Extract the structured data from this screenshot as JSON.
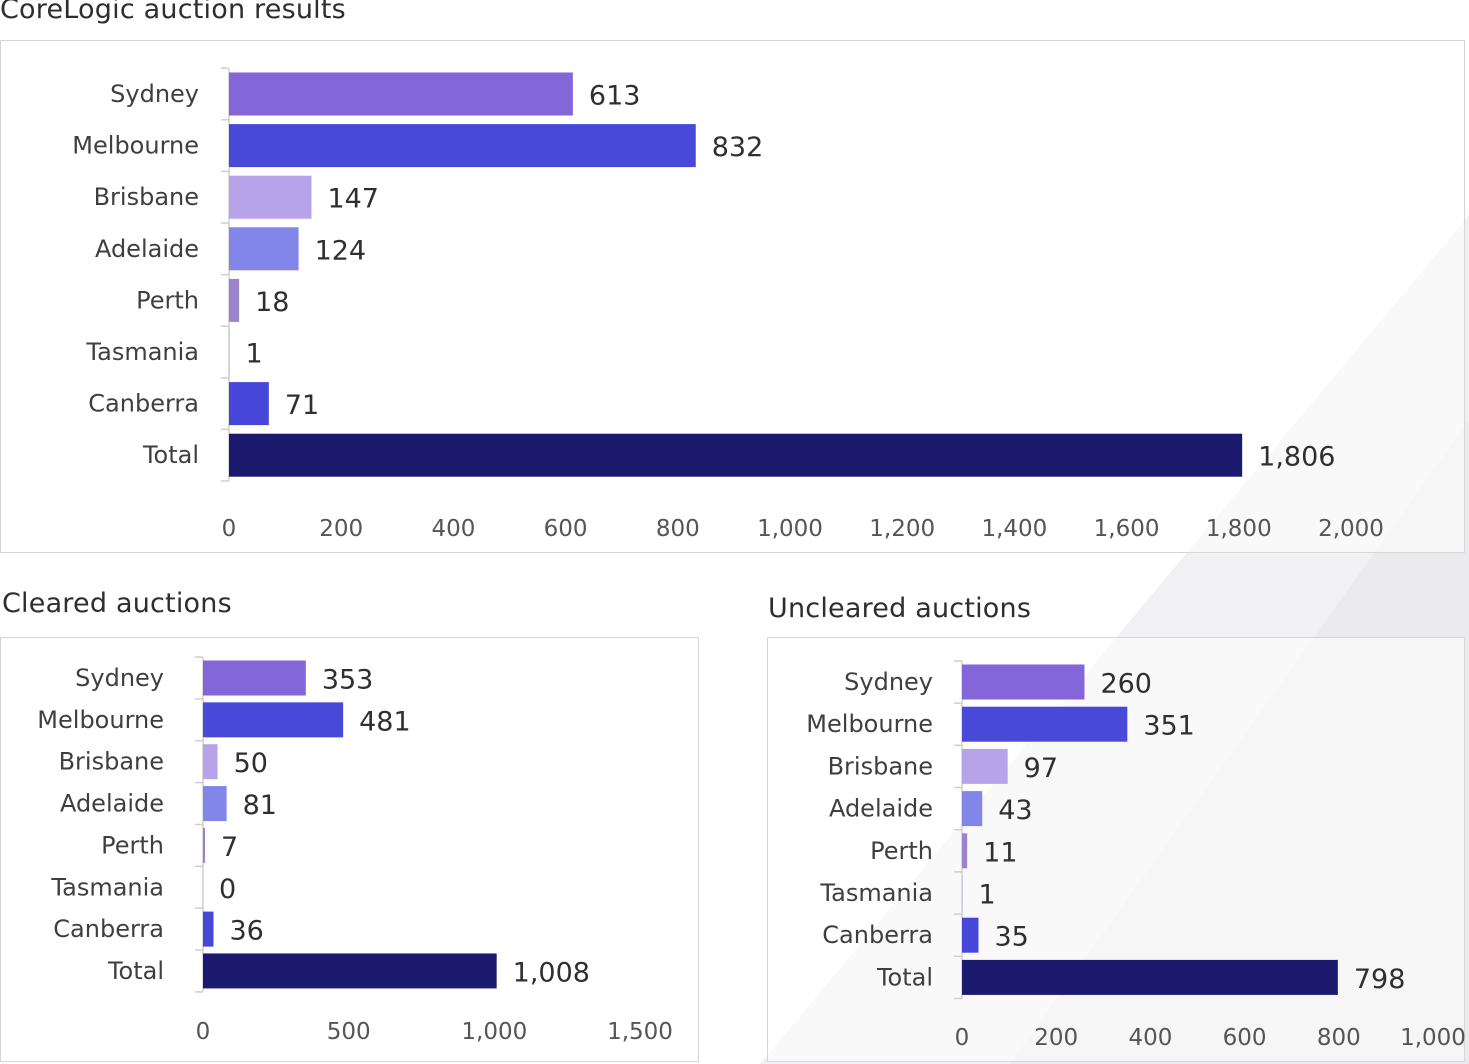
{
  "colors": {
    "sydney": "#8466d8",
    "melbourne": "#4849d8",
    "brisbane": "#b6a3ea",
    "adelaide": "#8186e8",
    "perth": "#9b84cc",
    "tasmania": "#b9b3ea",
    "canberra": "#4646d8",
    "total": "#1c1a6e"
  },
  "chart_data": [
    {
      "type": "bar",
      "orientation": "horizontal",
      "title": "CoreLogic auction results",
      "categories": [
        "Sydney",
        "Melbourne",
        "Brisbane",
        "Adelaide",
        "Perth",
        "Tasmania",
        "Canberra",
        "Total"
      ],
      "values": [
        613,
        832,
        147,
        124,
        18,
        1,
        71,
        1806
      ],
      "value_labels": [
        "613",
        "832",
        "147",
        "124",
        "18",
        "1",
        "71",
        "1,806"
      ],
      "xlim": [
        0,
        2000
      ],
      "xticks": [
        0,
        200,
        400,
        600,
        800,
        1000,
        1200,
        1400,
        1600,
        1800,
        2000
      ],
      "xtick_labels": [
        "0",
        "200",
        "400",
        "600",
        "800",
        "1,000",
        "1,200",
        "1,400",
        "1,600",
        "1,800",
        "2,000"
      ],
      "grid": false
    },
    {
      "type": "bar",
      "orientation": "horizontal",
      "title": "Cleared auctions",
      "categories": [
        "Sydney",
        "Melbourne",
        "Brisbane",
        "Adelaide",
        "Perth",
        "Tasmania",
        "Canberra",
        "Total"
      ],
      "values": [
        353,
        481,
        50,
        81,
        7,
        0,
        36,
        1008
      ],
      "value_labels": [
        "353",
        "481",
        "50",
        "81",
        "7",
        "0",
        "36",
        "1,008"
      ],
      "xlim": [
        0,
        1500
      ],
      "xticks": [
        0,
        500,
        1000,
        1500
      ],
      "xtick_labels": [
        "0",
        "500",
        "1,000",
        "1,500"
      ],
      "grid": false
    },
    {
      "type": "bar",
      "orientation": "horizontal",
      "title": "Uncleared auctions",
      "categories": [
        "Sydney",
        "Melbourne",
        "Brisbane",
        "Adelaide",
        "Perth",
        "Tasmania",
        "Canberra",
        "Total"
      ],
      "values": [
        260,
        351,
        97,
        43,
        11,
        1,
        35,
        798
      ],
      "value_labels": [
        "260",
        "351",
        "97",
        "43",
        "11",
        "1",
        "35",
        "798"
      ],
      "xlim": [
        0,
        1000
      ],
      "xticks": [
        0,
        200,
        400,
        600,
        800,
        1000
      ],
      "xtick_labels": [
        "0",
        "200",
        "400",
        "600",
        "800",
        "1,000"
      ],
      "grid": false
    }
  ]
}
